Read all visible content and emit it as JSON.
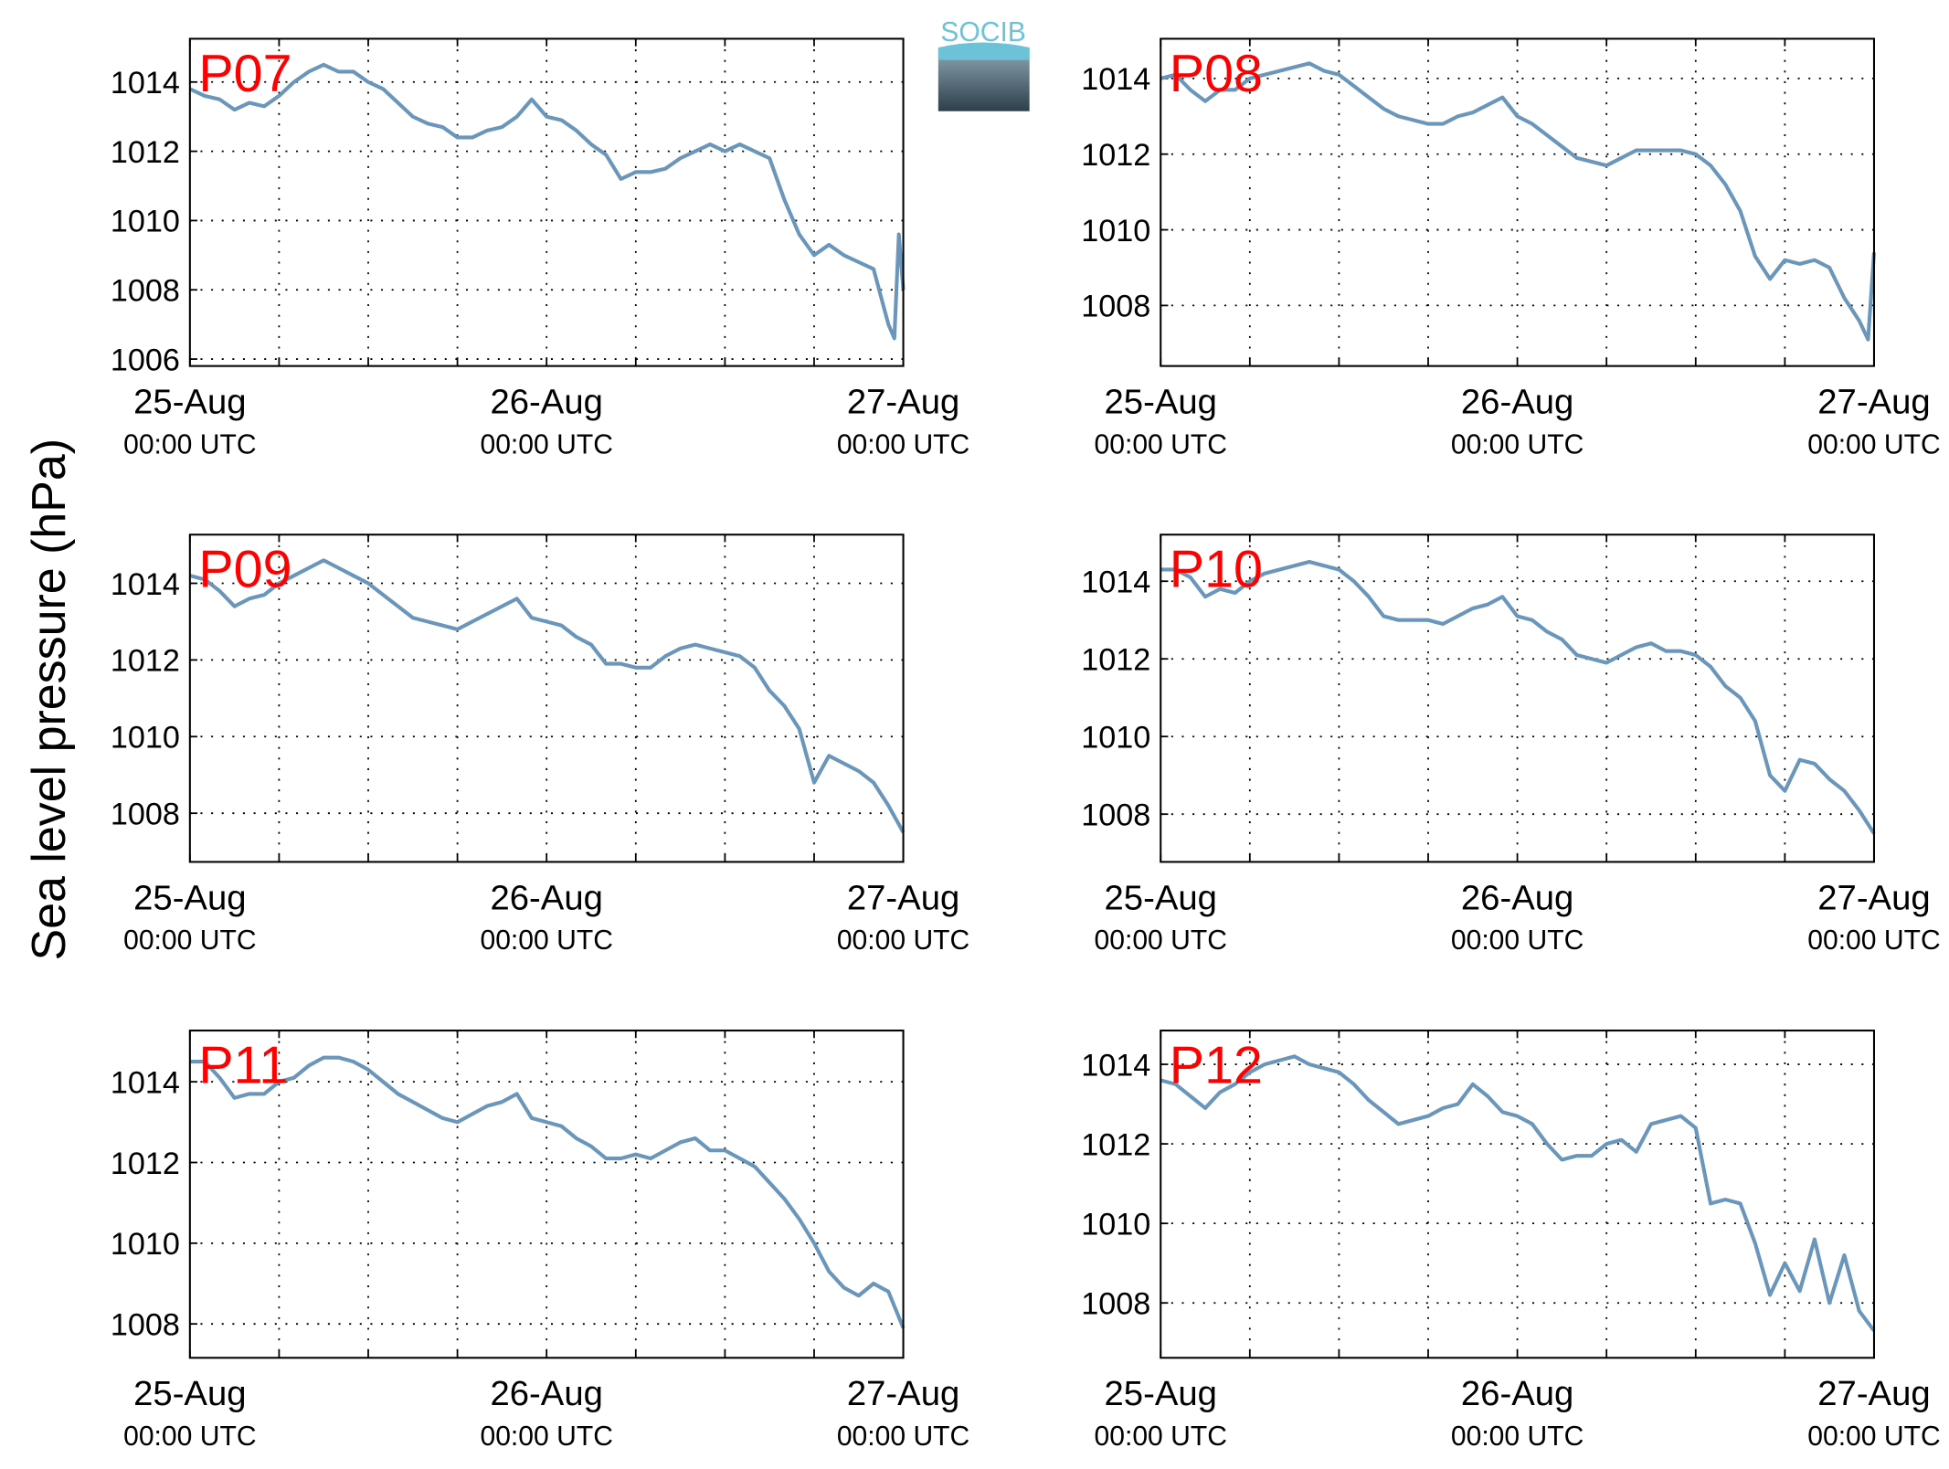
{
  "ylabel": "Sea level pressure (hPa)",
  "logo": "SOCIB",
  "chart_data": [
    {
      "type": "line",
      "title": "P07",
      "color": "#6a96bb",
      "grid": true,
      "xlim": [
        0,
        48
      ],
      "ylim": [
        1005.8,
        1015.25
      ],
      "yticks": [
        1006,
        1008,
        1010,
        1012,
        1014
      ],
      "xticks": [
        {
          "value": 0,
          "label": "25-Aug",
          "sublabel": "00:00 UTC"
        },
        {
          "value": 6,
          "label": null
        },
        {
          "value": 12,
          "label": null
        },
        {
          "value": 18,
          "label": null
        },
        {
          "value": 24,
          "label": "26-Aug",
          "sublabel": "00:00 UTC"
        },
        {
          "value": 30,
          "label": null
        },
        {
          "value": 36,
          "label": null
        },
        {
          "value": 42,
          "label": null
        },
        {
          "value": 48,
          "label": "27-Aug",
          "sublabel": "00:00 UTC"
        }
      ],
      "x": [
        0,
        1,
        2,
        3,
        4,
        5,
        6,
        7,
        8,
        9,
        10,
        11,
        12,
        13,
        14,
        15,
        16,
        17,
        18,
        19,
        20,
        21,
        22,
        23,
        24,
        25,
        26,
        27,
        28,
        29,
        30,
        31,
        32,
        33,
        34,
        35,
        36,
        37,
        38,
        39,
        40,
        41,
        42,
        43,
        44,
        45,
        46,
        47,
        47.4,
        47.7,
        48
      ],
      "values": [
        1013.8,
        1013.6,
        1013.5,
        1013.2,
        1013.4,
        1013.3,
        1013.6,
        1014.0,
        1014.3,
        1014.5,
        1014.3,
        1014.3,
        1014.0,
        1013.8,
        1013.4,
        1013.0,
        1012.8,
        1012.7,
        1012.4,
        1012.4,
        1012.6,
        1012.7,
        1013.0,
        1013.5,
        1013.0,
        1012.9,
        1012.6,
        1012.2,
        1011.9,
        1011.2,
        1011.4,
        1011.4,
        1011.5,
        1011.8,
        1012.0,
        1012.2,
        1012.0,
        1012.2,
        1012.0,
        1011.8,
        1010.6,
        1009.6,
        1009.0,
        1009.3,
        1009.0,
        1008.8,
        1008.6,
        1007.0,
        1006.6,
        1009.6,
        1008.0
      ]
    },
    {
      "type": "line",
      "title": "P08",
      "color": "#6a96bb",
      "grid": true,
      "xlim": [
        0,
        48
      ],
      "ylim": [
        1006.4,
        1015.05
      ],
      "yticks": [
        1008,
        1010,
        1012,
        1014
      ],
      "xticks": [
        {
          "value": 0,
          "label": "25-Aug",
          "sublabel": "00:00 UTC"
        },
        {
          "value": 6,
          "label": null
        },
        {
          "value": 12,
          "label": null
        },
        {
          "value": 18,
          "label": null
        },
        {
          "value": 24,
          "label": "26-Aug",
          "sublabel": "00:00 UTC"
        },
        {
          "value": 30,
          "label": null
        },
        {
          "value": 36,
          "label": null
        },
        {
          "value": 42,
          "label": null
        },
        {
          "value": 48,
          "label": "27-Aug",
          "sublabel": "00:00 UTC"
        }
      ],
      "x": [
        0,
        1,
        2,
        3,
        4,
        5,
        6,
        7,
        8,
        9,
        10,
        11,
        12,
        13,
        14,
        15,
        16,
        17,
        18,
        19,
        20,
        21,
        22,
        23,
        24,
        25,
        26,
        27,
        28,
        29,
        30,
        31,
        32,
        33,
        34,
        35,
        36,
        37,
        38,
        39,
        40,
        41,
        42,
        43,
        44,
        45,
        46,
        47,
        47.6,
        48
      ],
      "values": [
        1014.0,
        1014.1,
        1013.7,
        1013.4,
        1013.7,
        1013.7,
        1014.0,
        1014.1,
        1014.2,
        1014.3,
        1014.4,
        1014.2,
        1014.1,
        1013.8,
        1013.5,
        1013.2,
        1013.0,
        1012.9,
        1012.8,
        1012.8,
        1013.0,
        1013.1,
        1013.3,
        1013.5,
        1013.0,
        1012.8,
        1012.5,
        1012.2,
        1011.9,
        1011.8,
        1011.7,
        1011.9,
        1012.1,
        1012.1,
        1012.1,
        1012.1,
        1012.0,
        1011.7,
        1011.2,
        1010.5,
        1009.3,
        1008.7,
        1009.2,
        1009.1,
        1009.2,
        1009.0,
        1008.2,
        1007.6,
        1007.1,
        1009.4
      ]
    },
    {
      "type": "line",
      "title": "P09",
      "color": "#6a96bb",
      "grid": true,
      "xlim": [
        0,
        48
      ],
      "ylim": [
        1006.73,
        1015.27
      ],
      "yticks": [
        1008,
        1010,
        1012,
        1014
      ],
      "xticks": [
        {
          "value": 0,
          "label": "25-Aug",
          "sublabel": "00:00 UTC"
        },
        {
          "value": 6,
          "label": null
        },
        {
          "value": 12,
          "label": null
        },
        {
          "value": 18,
          "label": null
        },
        {
          "value": 24,
          "label": "26-Aug",
          "sublabel": "00:00 UTC"
        },
        {
          "value": 30,
          "label": null
        },
        {
          "value": 36,
          "label": null
        },
        {
          "value": 42,
          "label": null
        },
        {
          "value": 48,
          "label": "27-Aug",
          "sublabel": "00:00 UTC"
        }
      ],
      "x": [
        0,
        1,
        2,
        3,
        4,
        5,
        6,
        7,
        8,
        9,
        10,
        11,
        12,
        13,
        14,
        15,
        16,
        17,
        18,
        19,
        20,
        21,
        22,
        23,
        24,
        25,
        26,
        27,
        28,
        29,
        30,
        31,
        32,
        33,
        34,
        35,
        36,
        37,
        38,
        39,
        40,
        41,
        42,
        43,
        44,
        45,
        46,
        47,
        48
      ],
      "values": [
        1014.2,
        1014.1,
        1013.8,
        1013.4,
        1013.6,
        1013.7,
        1014.0,
        1014.2,
        1014.4,
        1014.6,
        1014.4,
        1014.2,
        1014.0,
        1013.7,
        1013.4,
        1013.1,
        1013.0,
        1012.9,
        1012.8,
        1013.0,
        1013.2,
        1013.4,
        1013.6,
        1013.1,
        1013.0,
        1012.9,
        1012.6,
        1012.4,
        1011.9,
        1011.9,
        1011.8,
        1011.8,
        1012.1,
        1012.3,
        1012.4,
        1012.3,
        1012.2,
        1012.1,
        1011.8,
        1011.2,
        1010.8,
        1010.2,
        1008.8,
        1009.5,
        1009.3,
        1009.1,
        1008.8,
        1008.2,
        1007.5
      ]
    },
    {
      "type": "line",
      "title": "P10",
      "color": "#6a96bb",
      "grid": true,
      "xlim": [
        0,
        48
      ],
      "ylim": [
        1006.77,
        1015.2
      ],
      "yticks": [
        1008,
        1010,
        1012,
        1014
      ],
      "xticks": [
        {
          "value": 0,
          "label": "25-Aug",
          "sublabel": "00:00 UTC"
        },
        {
          "value": 6,
          "label": null
        },
        {
          "value": 12,
          "label": null
        },
        {
          "value": 18,
          "label": null
        },
        {
          "value": 24,
          "label": "26-Aug",
          "sublabel": "00:00 UTC"
        },
        {
          "value": 30,
          "label": null
        },
        {
          "value": 36,
          "label": null
        },
        {
          "value": 42,
          "label": null
        },
        {
          "value": 48,
          "label": "27-Aug",
          "sublabel": "00:00 UTC"
        }
      ],
      "x": [
        0,
        1,
        2,
        3,
        4,
        5,
        6,
        7,
        8,
        9,
        10,
        11,
        12,
        13,
        14,
        15,
        16,
        17,
        18,
        19,
        20,
        21,
        22,
        23,
        24,
        25,
        26,
        27,
        28,
        29,
        30,
        31,
        32,
        33,
        34,
        35,
        36,
        37,
        38,
        39,
        40,
        41,
        42,
        43,
        44,
        45,
        46,
        47,
        48
      ],
      "values": [
        1014.3,
        1014.3,
        1014.1,
        1013.6,
        1013.8,
        1013.7,
        1014.0,
        1014.2,
        1014.3,
        1014.4,
        1014.5,
        1014.4,
        1014.3,
        1014.0,
        1013.6,
        1013.1,
        1013.0,
        1013.0,
        1013.0,
        1012.9,
        1013.1,
        1013.3,
        1013.4,
        1013.6,
        1013.1,
        1013.0,
        1012.7,
        1012.5,
        1012.1,
        1012.0,
        1011.9,
        1012.1,
        1012.3,
        1012.4,
        1012.2,
        1012.2,
        1012.1,
        1011.8,
        1011.3,
        1011.0,
        1010.4,
        1009.0,
        1008.6,
        1009.4,
        1009.3,
        1008.9,
        1008.6,
        1008.1,
        1007.5
      ]
    },
    {
      "type": "line",
      "title": "P11",
      "color": "#6a96bb",
      "grid": true,
      "xlim": [
        0,
        48
      ],
      "ylim": [
        1007.16,
        1015.27
      ],
      "yticks": [
        1008,
        1010,
        1012,
        1014
      ],
      "xticks": [
        {
          "value": 0,
          "label": "25-Aug",
          "sublabel": "00:00 UTC"
        },
        {
          "value": 6,
          "label": null
        },
        {
          "value": 12,
          "label": null
        },
        {
          "value": 18,
          "label": null
        },
        {
          "value": 24,
          "label": "26-Aug",
          "sublabel": "00:00 UTC"
        },
        {
          "value": 30,
          "label": null
        },
        {
          "value": 36,
          "label": null
        },
        {
          "value": 42,
          "label": null
        },
        {
          "value": 48,
          "label": "27-Aug",
          "sublabel": "00:00 UTC"
        }
      ],
      "x": [
        0,
        1,
        2,
        3,
        4,
        5,
        6,
        7,
        8,
        9,
        10,
        11,
        12,
        13,
        14,
        15,
        16,
        17,
        18,
        19,
        20,
        21,
        22,
        23,
        24,
        25,
        26,
        27,
        28,
        29,
        30,
        31,
        32,
        33,
        34,
        35,
        36,
        37,
        38,
        39,
        40,
        41,
        42,
        43,
        44,
        45,
        46,
        47,
        48
      ],
      "values": [
        1014.5,
        1014.5,
        1014.1,
        1013.6,
        1013.7,
        1013.7,
        1014.0,
        1014.1,
        1014.4,
        1014.6,
        1014.6,
        1014.5,
        1014.3,
        1014.0,
        1013.7,
        1013.5,
        1013.3,
        1013.1,
        1013.0,
        1013.2,
        1013.4,
        1013.5,
        1013.7,
        1013.1,
        1013.0,
        1012.9,
        1012.6,
        1012.4,
        1012.1,
        1012.1,
        1012.2,
        1012.1,
        1012.3,
        1012.5,
        1012.6,
        1012.3,
        1012.3,
        1012.1,
        1011.9,
        1011.5,
        1011.1,
        1010.6,
        1010.0,
        1009.3,
        1008.9,
        1008.7,
        1009.0,
        1008.8,
        1007.9
      ]
    },
    {
      "type": "line",
      "title": "P12",
      "color": "#6a96bb",
      "grid": true,
      "xlim": [
        0,
        48
      ],
      "ylim": [
        1006.62,
        1014.85
      ],
      "yticks": [
        1008,
        1010,
        1012,
        1014
      ],
      "xticks": [
        {
          "value": 0,
          "label": "25-Aug",
          "sublabel": "00:00 UTC"
        },
        {
          "value": 6,
          "label": null
        },
        {
          "value": 12,
          "label": null
        },
        {
          "value": 18,
          "label": null
        },
        {
          "value": 24,
          "label": "26-Aug",
          "sublabel": "00:00 UTC"
        },
        {
          "value": 30,
          "label": null
        },
        {
          "value": 36,
          "label": null
        },
        {
          "value": 42,
          "label": null
        },
        {
          "value": 48,
          "label": "27-Aug",
          "sublabel": "00:00 UTC"
        }
      ],
      "x": [
        0,
        1,
        2,
        3,
        4,
        5,
        6,
        7,
        8,
        9,
        10,
        11,
        12,
        13,
        14,
        15,
        16,
        17,
        18,
        19,
        20,
        21,
        22,
        23,
        24,
        25,
        26,
        27,
        28,
        29,
        30,
        31,
        32,
        33,
        34,
        35,
        36,
        37,
        38,
        39,
        40,
        41,
        42,
        43,
        44,
        45,
        46,
        47,
        48
      ],
      "values": [
        1013.6,
        1013.5,
        1013.2,
        1012.9,
        1013.3,
        1013.5,
        1013.8,
        1014.0,
        1014.1,
        1014.2,
        1014.0,
        1013.9,
        1013.8,
        1013.5,
        1013.1,
        1012.8,
        1012.5,
        1012.6,
        1012.7,
        1012.9,
        1013.0,
        1013.5,
        1013.2,
        1012.8,
        1012.7,
        1012.5,
        1012.0,
        1011.6,
        1011.7,
        1011.7,
        1012.0,
        1012.1,
        1011.8,
        1012.5,
        1012.6,
        1012.7,
        1012.4,
        1010.5,
        1010.6,
        1010.5,
        1009.5,
        1008.2,
        1009.0,
        1008.3,
        1009.6,
        1008.0,
        1009.2,
        1007.8,
        1007.3
      ]
    }
  ]
}
